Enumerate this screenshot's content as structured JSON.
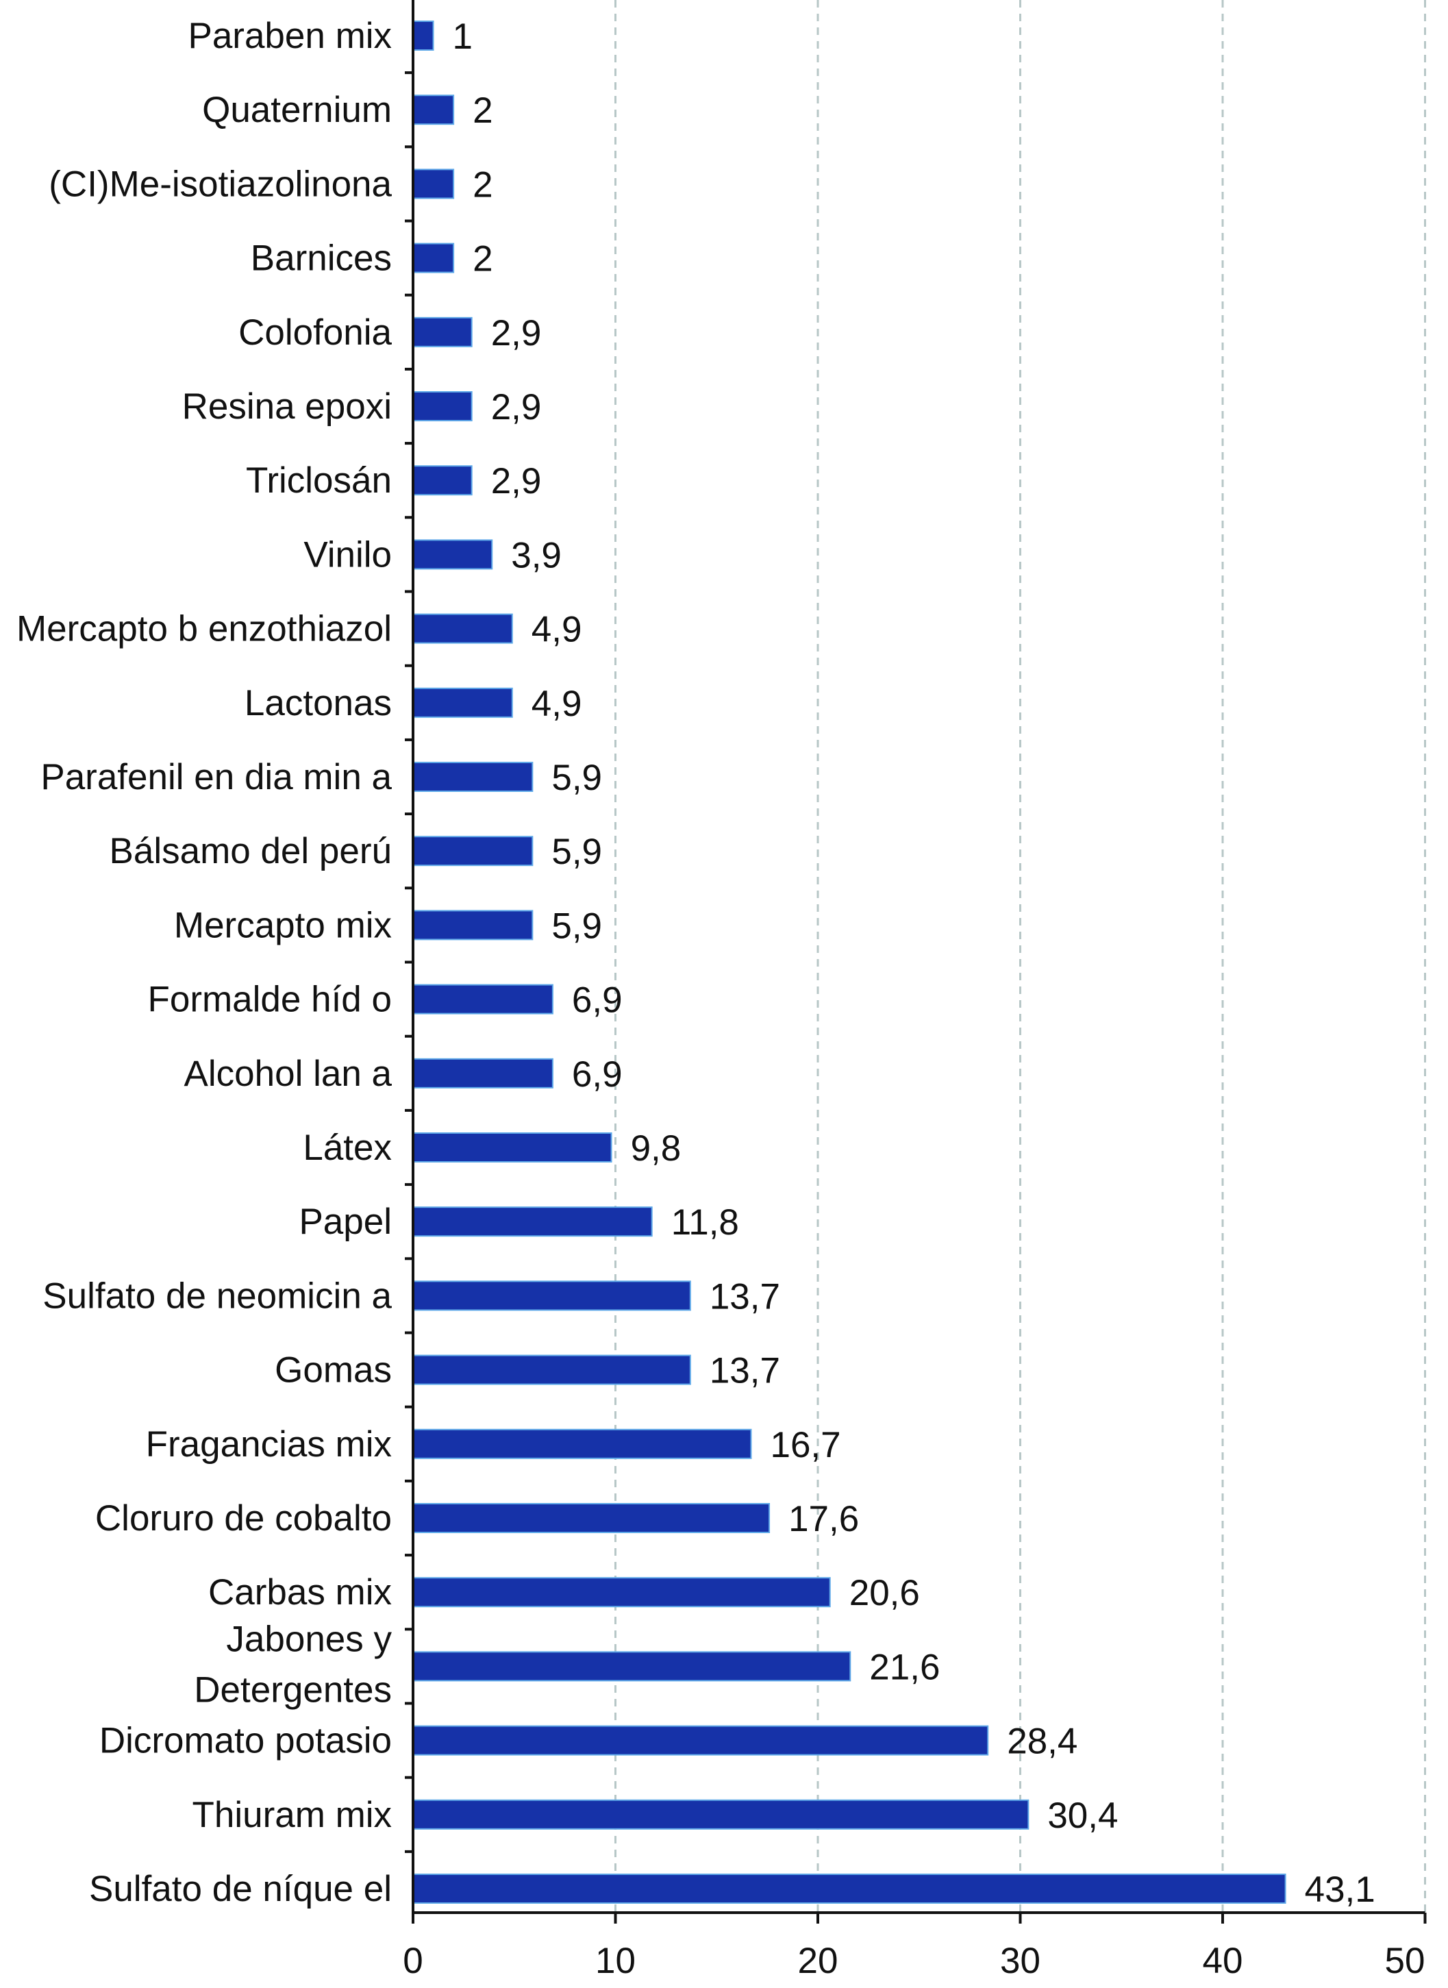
{
  "chart_data": {
    "type": "bar",
    "orientation": "horizontal",
    "categories": [
      "Paraben mix",
      "Quaternium",
      "(CI)Me-isotiazolinona",
      "Barnices",
      "Colofonia",
      "Resina epoxi",
      "Triclosán",
      "Vinilo",
      "Mercapto b enzothiazol",
      "Lactonas",
      "Parafenil en dia min a",
      "Bálsamo del perú",
      "Mercapto mix",
      "Formalde híd o",
      "Alcohol lan a",
      "Látex",
      "Papel",
      "Sulfato de neomicin a",
      "Gomas",
      "Fragancias mix",
      "Cloruro de cobalto",
      "Carbas mix",
      "Jabones y Detergentes",
      "Dicromato potasio",
      "Thiuram mix",
      "Sulfato de níque el"
    ],
    "values": [
      1,
      2,
      2,
      2,
      2.9,
      2.9,
      2.9,
      3.9,
      4.9,
      4.9,
      5.9,
      5.9,
      5.9,
      6.9,
      6.9,
      9.8,
      11.8,
      13.7,
      13.7,
      16.7,
      17.6,
      20.6,
      21.6,
      28.4,
      30.4,
      43.1
    ],
    "value_labels": [
      "1",
      "2",
      "2",
      "2",
      "2,9",
      "2,9",
      "2,9",
      "3,9",
      "4,9",
      "4,9",
      "5,9",
      "5,9",
      "5,9",
      "6,9",
      "6,9",
      "9,8",
      "11,8",
      "13,7",
      "13,7",
      "16,7",
      "17,6",
      "20,6",
      "21,6",
      "28,4",
      "30,4",
      "43,1"
    ],
    "xlim": [
      0,
      50
    ],
    "xticks": [
      0,
      10,
      20,
      30,
      40,
      50
    ],
    "xtick_labels": [
      "0",
      "10",
      "20",
      "30",
      "40",
      "50"
    ],
    "title": "",
    "xlabel": "",
    "ylabel": "",
    "grid": "vertical dashed",
    "legend": "none",
    "colors": {
      "bar": "#1632a8",
      "bar_edge": "#5ea8e8",
      "grid": "#b7c7c7",
      "axis": "#111111",
      "text": "#111111"
    }
  }
}
